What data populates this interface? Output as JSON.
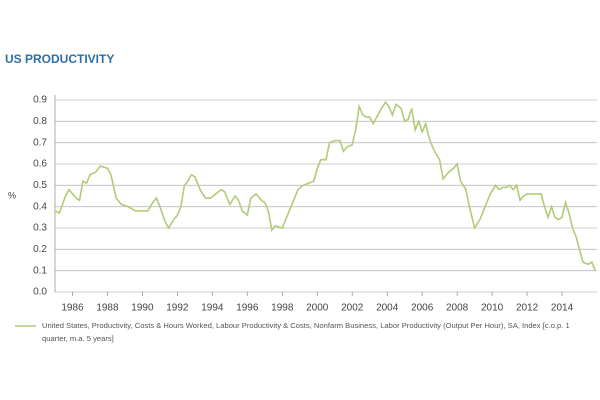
{
  "chart_data": {
    "type": "line",
    "title": "US PRODUCTIVITY",
    "y_label": "%",
    "xlim": [
      1985,
      2016
    ],
    "xticks": [
      1986,
      1988,
      1990,
      1992,
      1994,
      1996,
      1998,
      2000,
      2002,
      2004,
      2006,
      2008,
      2010,
      2012,
      2014
    ],
    "ylim": [
      0,
      0.9
    ],
    "yticks": [
      {
        "value": 0,
        "label": "0.0"
      },
      0.1,
      0.2,
      0.3,
      0.4,
      0.5,
      0.6,
      0.7,
      0.8,
      0.9
    ],
    "grid": true,
    "x": [
      1985.0,
      1985.25,
      1985.6,
      1985.8,
      1986.2,
      1986.4,
      1986.6,
      1986.8,
      1987.0,
      1987.3,
      1987.6,
      1988.0,
      1988.2,
      1988.5,
      1988.8,
      1989.2,
      1989.6,
      1990.0,
      1990.3,
      1990.6,
      1990.8,
      1991.0,
      1991.3,
      1991.5,
      1991.8,
      1992.0,
      1992.2,
      1992.4,
      1992.6,
      1992.8,
      1993.0,
      1993.3,
      1993.6,
      1993.9,
      1994.2,
      1994.5,
      1994.7,
      1995.0,
      1995.3,
      1995.5,
      1995.7,
      1996.0,
      1996.2,
      1996.5,
      1996.8,
      1997.0,
      1997.2,
      1997.4,
      1997.6,
      1998.0,
      1998.3,
      1998.6,
      1998.9,
      1999.2,
      1999.5,
      1999.8,
      2000.0,
      2000.2,
      2000.5,
      2000.7,
      2001.0,
      2001.3,
      2001.5,
      2001.7,
      2002.0,
      2002.2,
      2002.4,
      2002.6,
      2002.8,
      2003.0,
      2003.2,
      2003.4,
      2003.6,
      2003.9,
      2004.1,
      2004.3,
      2004.5,
      2004.8,
      2005.0,
      2005.2,
      2005.4,
      2005.6,
      2005.8,
      2006.0,
      2006.2,
      2006.4,
      2006.7,
      2007.0,
      2007.2,
      2007.5,
      2007.8,
      2008.0,
      2008.2,
      2008.5,
      2008.7,
      2009.0,
      2009.3,
      2009.6,
      2009.9,
      2010.2,
      2010.4,
      2010.6,
      2010.8,
      2011.0,
      2011.2,
      2011.4,
      2011.6,
      2011.8,
      2012.0,
      2012.4,
      2012.8,
      2013.0,
      2013.2,
      2013.4,
      2013.6,
      2013.8,
      2014.0,
      2014.2,
      2014.4,
      2014.6,
      2014.8,
      2015.0,
      2015.2,
      2015.5,
      2015.7,
      2015.9
    ],
    "series": [
      {
        "name": "United States, Productivity, Costs & Hours Worked, Labour Productivity & Costs, Nonfarm Business, Labor Productivity (Output Per Hour), SA, Index [c.o.p. 1 quarter, m.a. 5 years]",
        "color": "#b3ca78",
        "values": [
          0.38,
          0.37,
          0.45,
          0.48,
          0.44,
          0.43,
          0.52,
          0.51,
          0.55,
          0.56,
          0.59,
          0.58,
          0.55,
          0.44,
          0.41,
          0.4,
          0.38,
          0.38,
          0.38,
          0.42,
          0.44,
          0.4,
          0.33,
          0.3,
          0.34,
          0.36,
          0.4,
          0.5,
          0.52,
          0.55,
          0.54,
          0.48,
          0.44,
          0.44,
          0.46,
          0.48,
          0.47,
          0.41,
          0.45,
          0.43,
          0.38,
          0.36,
          0.44,
          0.46,
          0.43,
          0.42,
          0.38,
          0.29,
          0.31,
          0.3,
          0.36,
          0.42,
          0.48,
          0.5,
          0.51,
          0.52,
          0.58,
          0.62,
          0.62,
          0.7,
          0.71,
          0.71,
          0.66,
          0.68,
          0.69,
          0.76,
          0.87,
          0.83,
          0.82,
          0.82,
          0.79,
          0.82,
          0.85,
          0.89,
          0.87,
          0.83,
          0.88,
          0.86,
          0.8,
          0.81,
          0.86,
          0.76,
          0.8,
          0.75,
          0.79,
          0.72,
          0.66,
          0.62,
          0.53,
          0.56,
          0.58,
          0.6,
          0.52,
          0.48,
          0.4,
          0.3,
          0.34,
          0.4,
          0.46,
          0.5,
          0.48,
          0.49,
          0.49,
          0.5,
          0.48,
          0.5,
          0.43,
          0.45,
          0.46,
          0.46,
          0.46,
          0.4,
          0.35,
          0.4,
          0.35,
          0.34,
          0.35,
          0.42,
          0.37,
          0.3,
          0.26,
          0.2,
          0.14,
          0.13,
          0.14,
          0.1
        ]
      }
    ]
  }
}
